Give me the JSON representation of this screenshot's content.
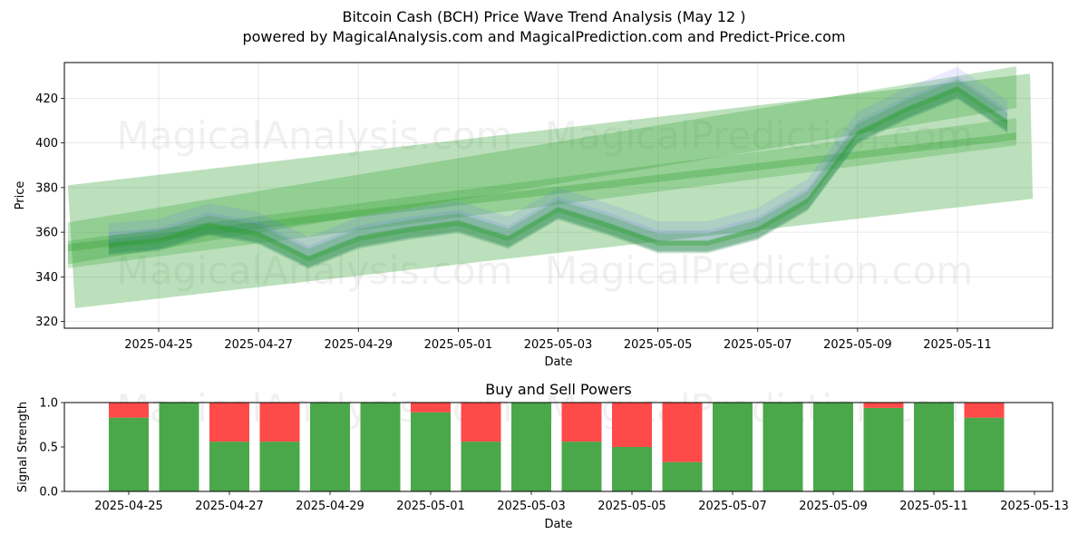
{
  "header": {
    "title": "Bitcoin Cash (BCH) Price Wave Trend Analysis (May 12 )",
    "subtitle": "powered by MagicalAnalysis.com and MagicalPrediction.com and Predict-Price.com"
  },
  "watermarks": [
    "MagicalAnalysis.com",
    "MagicalPrediction.com"
  ],
  "colors": {
    "band_green": "#2ca02c",
    "band_blue": "#4f5cff",
    "buy": "#4aa84a",
    "sell": "#ff4a4a",
    "grid": "#b0b0b0"
  },
  "chart_data": [
    {
      "type": "area",
      "title": "",
      "xlabel": "Date",
      "ylabel": "Price",
      "ylim": [
        317,
        436
      ],
      "grid": true,
      "y_ticks": [
        320,
        340,
        360,
        380,
        400,
        420
      ],
      "x_ticks": [
        "2025-04-25",
        "2025-04-27",
        "2025-04-29",
        "2025-05-01",
        "2025-05-03",
        "2025-05-05",
        "2025-05-07",
        "2025-05-09",
        "2025-05-11"
      ],
      "x_dates": [
        "2025-04-24",
        "2025-04-25",
        "2025-04-26",
        "2025-04-27",
        "2025-04-28",
        "2025-04-29",
        "2025-04-30",
        "2025-05-01",
        "2025-05-02",
        "2025-05-03",
        "2025-05-04",
        "2025-05-05",
        "2025-05-06",
        "2025-05-07",
        "2025-05-08",
        "2025-05-09",
        "2025-05-10",
        "2025-05-11",
        "2025-05-12"
      ],
      "price_wave": [
        355,
        357,
        364,
        360,
        349,
        358,
        362,
        365,
        358,
        371,
        364,
        356,
        356,
        362,
        375,
        405,
        416,
        425,
        410
      ],
      "trend_lines": {
        "upper_channel": {
          "start": [
            "2025-04-23",
            381
          ],
          "end": [
            "2025-05-12",
            431
          ]
        },
        "main_channel": {
          "start": [
            "2025-04-23",
            355
          ],
          "end": [
            "2025-05-12",
            425
          ]
        },
        "lower_channel": {
          "start": [
            "2025-04-23",
            331
          ],
          "end": [
            "2025-05-12",
            400
          ]
        }
      }
    },
    {
      "type": "bar",
      "title": "Buy and Sell Powers",
      "xlabel": "Date",
      "ylabel": "Signal Strength",
      "ylim": [
        0,
        1.0
      ],
      "y_ticks": [
        "0.0",
        "0.5",
        "1.0"
      ],
      "x_ticks": [
        "2025-04-25",
        "2025-04-27",
        "2025-04-29",
        "2025-05-01",
        "2025-05-03",
        "2025-05-05",
        "2025-05-07",
        "2025-05-09",
        "2025-05-11",
        "2025-05-13"
      ],
      "categories": [
        "2025-04-25",
        "2025-04-26",
        "2025-04-27",
        "2025-04-28",
        "2025-04-29",
        "2025-04-30",
        "2025-05-01",
        "2025-05-02",
        "2025-05-03",
        "2025-05-04",
        "2025-05-05",
        "2025-05-06",
        "2025-05-07",
        "2025-05-08",
        "2025-05-09",
        "2025-05-10",
        "2025-05-11",
        "2025-05-12"
      ],
      "series": [
        {
          "name": "",
          "values": [
            0.83,
            1.0,
            0.56,
            0.56,
            1.0,
            1.0,
            0.89,
            0.56,
            1.0,
            0.56,
            0.5,
            0.33,
            1.0,
            1.0,
            1.0,
            0.94,
            1.0,
            0.83
          ]
        },
        {
          "name": "",
          "values": [
            0.17,
            0.0,
            0.44,
            0.44,
            0.0,
            0.0,
            0.11,
            0.44,
            0.0,
            0.44,
            0.5,
            0.67,
            0.0,
            0.0,
            0.0,
            0.06,
            0.0,
            0.17
          ]
        }
      ]
    }
  ]
}
